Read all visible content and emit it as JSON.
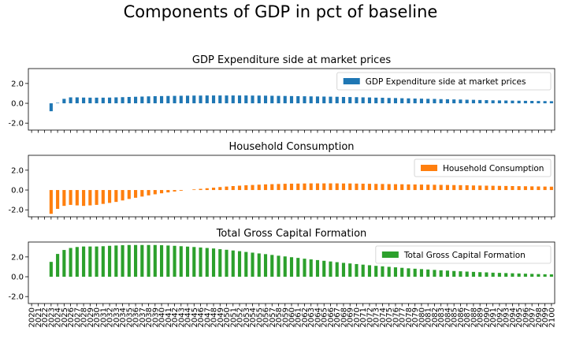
{
  "figure": {
    "title": "Components of GDP in pct of baseline"
  },
  "chart_data": [
    {
      "type": "bar",
      "title": "GDP Expenditure side at market prices",
      "legend": "top-right",
      "color": "#1f77b4",
      "ylim": [
        -2.7,
        3.5
      ],
      "yticks": [
        -2.0,
        0.0,
        2.0
      ],
      "yticklabels": [
        "-2.0",
        "0.0",
        "2.0"
      ],
      "x": [
        2020,
        2021,
        2022,
        2023,
        2024,
        2025,
        2026,
        2027,
        2028,
        2029,
        2030,
        2031,
        2032,
        2033,
        2034,
        2035,
        2036,
        2037,
        2038,
        2039,
        2040,
        2041,
        2042,
        2043,
        2044,
        2045,
        2046,
        2047,
        2048,
        2049,
        2050,
        2051,
        2052,
        2053,
        2054,
        2055,
        2056,
        2057,
        2058,
        2059,
        2060,
        2061,
        2062,
        2063,
        2064,
        2065,
        2066,
        2067,
        2068,
        2069,
        2070,
        2071,
        2072,
        2073,
        2074,
        2075,
        2076,
        2077,
        2078,
        2079,
        2080,
        2081,
        2082,
        2083,
        2084,
        2085,
        2086,
        2087,
        2088,
        2089,
        2090,
        2091,
        2092,
        2093,
        2094,
        2095,
        2096,
        2097,
        2098,
        2099,
        2100
      ],
      "series": [
        {
          "name": "GDP Expenditure side at market prices",
          "values": [
            0,
            0,
            0,
            -0.8,
            0.05,
            0.45,
            0.6,
            0.6,
            0.58,
            0.57,
            0.57,
            0.57,
            0.58,
            0.6,
            0.62,
            0.64,
            0.66,
            0.68,
            0.7,
            0.72,
            0.73,
            0.74,
            0.75,
            0.76,
            0.77,
            0.78,
            0.78,
            0.79,
            0.79,
            0.79,
            0.79,
            0.79,
            0.79,
            0.79,
            0.78,
            0.78,
            0.77,
            0.76,
            0.75,
            0.74,
            0.73,
            0.72,
            0.71,
            0.7,
            0.69,
            0.68,
            0.67,
            0.66,
            0.64,
            0.63,
            0.62,
            0.6,
            0.59,
            0.57,
            0.56,
            0.54,
            0.53,
            0.51,
            0.5,
            0.48,
            0.47,
            0.45,
            0.44,
            0.42,
            0.41,
            0.39,
            0.38,
            0.36,
            0.35,
            0.33,
            0.32,
            0.3,
            0.29,
            0.28,
            0.27,
            0.26,
            0.25,
            0.24,
            0.23,
            0.22,
            0.21
          ]
        }
      ]
    },
    {
      "type": "bar",
      "title": "Household Consumption",
      "legend": "top-right",
      "color": "#ff7f0e",
      "ylim": [
        -2.7,
        3.5
      ],
      "yticks": [
        -2.0,
        0.0,
        2.0
      ],
      "yticklabels": [
        "-2.0",
        "0.0",
        "2.0"
      ],
      "x": [
        2020,
        2021,
        2022,
        2023,
        2024,
        2025,
        2026,
        2027,
        2028,
        2029,
        2030,
        2031,
        2032,
        2033,
        2034,
        2035,
        2036,
        2037,
        2038,
        2039,
        2040,
        2041,
        2042,
        2043,
        2044,
        2045,
        2046,
        2047,
        2048,
        2049,
        2050,
        2051,
        2052,
        2053,
        2054,
        2055,
        2056,
        2057,
        2058,
        2059,
        2060,
        2061,
        2062,
        2063,
        2064,
        2065,
        2066,
        2067,
        2068,
        2069,
        2070,
        2071,
        2072,
        2073,
        2074,
        2075,
        2076,
        2077,
        2078,
        2079,
        2080,
        2081,
        2082,
        2083,
        2084,
        2085,
        2086,
        2087,
        2088,
        2089,
        2090,
        2091,
        2092,
        2093,
        2094,
        2095,
        2096,
        2097,
        2098,
        2099,
        2100
      ],
      "series": [
        {
          "name": "Household Consumption",
          "values": [
            0,
            0,
            0,
            -2.4,
            -1.9,
            -1.6,
            -1.5,
            -1.55,
            -1.6,
            -1.55,
            -1.5,
            -1.4,
            -1.3,
            -1.2,
            -1.05,
            -0.9,
            -0.78,
            -0.66,
            -0.54,
            -0.43,
            -0.33,
            -0.24,
            -0.15,
            -0.07,
            0.0,
            0.06,
            0.12,
            0.18,
            0.24,
            0.3,
            0.35,
            0.4,
            0.44,
            0.48,
            0.51,
            0.54,
            0.57,
            0.59,
            0.61,
            0.63,
            0.64,
            0.65,
            0.66,
            0.67,
            0.67,
            0.67,
            0.67,
            0.67,
            0.66,
            0.66,
            0.65,
            0.64,
            0.63,
            0.62,
            0.61,
            0.6,
            0.59,
            0.58,
            0.57,
            0.56,
            0.55,
            0.54,
            0.53,
            0.52,
            0.51,
            0.5,
            0.49,
            0.48,
            0.46,
            0.45,
            0.44,
            0.43,
            0.42,
            0.41,
            0.4,
            0.39,
            0.38,
            0.37,
            0.36,
            0.35,
            0.34
          ]
        }
      ]
    },
    {
      "type": "bar",
      "title": "Total Gross Capital Formation",
      "legend": "top-right",
      "color": "#2ca02c",
      "ylim": [
        -2.7,
        3.5
      ],
      "yticks": [
        -2.0,
        0.0,
        2.0
      ],
      "yticklabels": [
        "-2.0",
        "0.0",
        "2.0"
      ],
      "x": [
        2020,
        2021,
        2022,
        2023,
        2024,
        2025,
        2026,
        2027,
        2028,
        2029,
        2030,
        2031,
        2032,
        2033,
        2034,
        2035,
        2036,
        2037,
        2038,
        2039,
        2040,
        2041,
        2042,
        2043,
        2044,
        2045,
        2046,
        2047,
        2048,
        2049,
        2050,
        2051,
        2052,
        2053,
        2054,
        2055,
        2056,
        2057,
        2058,
        2059,
        2060,
        2061,
        2062,
        2063,
        2064,
        2065,
        2066,
        2067,
        2068,
        2069,
        2070,
        2071,
        2072,
        2073,
        2074,
        2075,
        2076,
        2077,
        2078,
        2079,
        2080,
        2081,
        2082,
        2083,
        2084,
        2085,
        2086,
        2087,
        2088,
        2089,
        2090,
        2091,
        2092,
        2093,
        2094,
        2095,
        2096,
        2097,
        2098,
        2099,
        2100
      ],
      "series": [
        {
          "name": "Total Gross Capital Formation",
          "values": [
            0,
            0,
            0,
            1.5,
            2.3,
            2.7,
            2.9,
            3.0,
            3.05,
            3.05,
            3.05,
            3.08,
            3.12,
            3.15,
            3.18,
            3.2,
            3.2,
            3.2,
            3.2,
            3.2,
            3.18,
            3.15,
            3.12,
            3.08,
            3.04,
            3.0,
            2.95,
            2.9,
            2.85,
            2.78,
            2.72,
            2.65,
            2.58,
            2.5,
            2.43,
            2.35,
            2.28,
            2.2,
            2.12,
            2.05,
            1.97,
            1.9,
            1.82,
            1.75,
            1.68,
            1.61,
            1.54,
            1.47,
            1.4,
            1.34,
            1.28,
            1.22,
            1.16,
            1.1,
            1.05,
            1.0,
            0.95,
            0.9,
            0.85,
            0.81,
            0.77,
            0.73,
            0.69,
            0.65,
            0.62,
            0.58,
            0.55,
            0.52,
            0.49,
            0.46,
            0.44,
            0.41,
            0.39,
            0.37,
            0.35,
            0.33,
            0.31,
            0.29,
            0.27,
            0.25,
            0.24
          ]
        }
      ]
    }
  ]
}
